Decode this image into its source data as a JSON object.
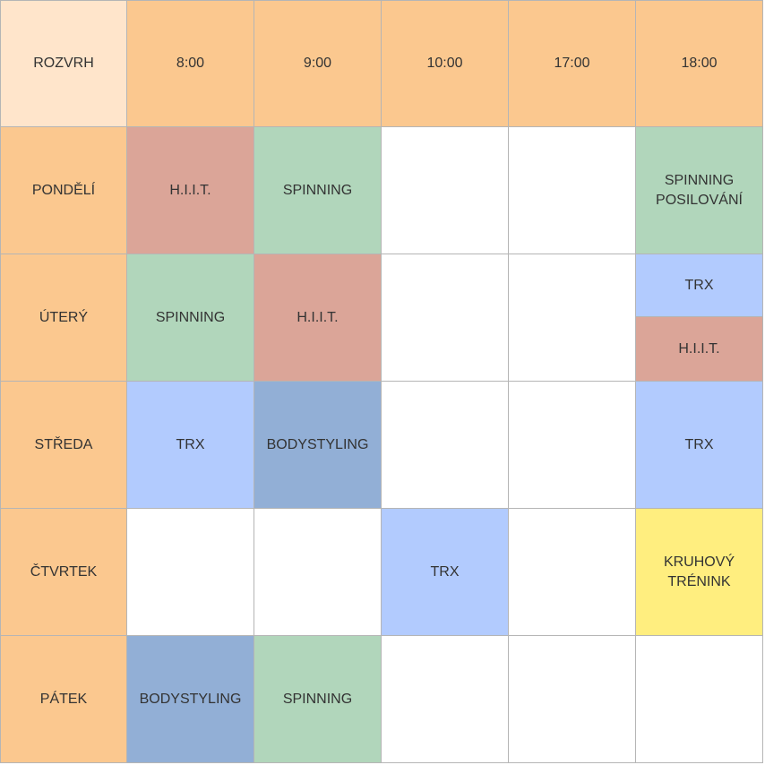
{
  "colors": {
    "corner": "#ffe5cb",
    "header": "#fbc88f",
    "empty": "#ffffff",
    "hiit": "#dba598",
    "spinning": "#b1d6bb",
    "trx": "#b2cbfe",
    "bodystyling": "#92afd6",
    "kruhovy": "#ffee7f",
    "border": "#b5b5b5"
  },
  "corner_label": "ROZVRH",
  "times": [
    "8:00",
    "9:00",
    "10:00",
    "17:00",
    "18:00"
  ],
  "days": [
    {
      "name": "PONDĚLÍ",
      "slots": [
        {
          "label": "H.I.I.T.",
          "type": "hiit"
        },
        {
          "label": "SPINNING",
          "type": "spinning"
        },
        {
          "label": "",
          "type": "empty"
        },
        {
          "label": "",
          "type": "empty"
        },
        {
          "label": "SPINNING\nPOSILOVÁNÍ",
          "type": "spinning"
        }
      ]
    },
    {
      "name": "ÚTERÝ",
      "slots": [
        {
          "label": "SPINNING",
          "type": "spinning"
        },
        {
          "label": "H.I.I.T.",
          "type": "hiit"
        },
        {
          "label": "",
          "type": "empty"
        },
        {
          "label": "",
          "type": "empty"
        },
        {
          "split": [
            {
              "label": "TRX",
              "type": "trx"
            },
            {
              "label": "H.I.I.T.",
              "type": "hiit"
            }
          ]
        }
      ]
    },
    {
      "name": "STŘEDA",
      "slots": [
        {
          "label": "TRX",
          "type": "trx"
        },
        {
          "label": "BODYSTYLING",
          "type": "bodystyling"
        },
        {
          "label": "",
          "type": "empty"
        },
        {
          "label": "",
          "type": "empty"
        },
        {
          "label": "TRX",
          "type": "trx"
        }
      ]
    },
    {
      "name": "ČTVRTEK",
      "slots": [
        {
          "label": "",
          "type": "empty"
        },
        {
          "label": "",
          "type": "empty"
        },
        {
          "label": "TRX",
          "type": "trx"
        },
        {
          "label": "",
          "type": "empty"
        },
        {
          "label": "KRUHOVÝ\nTRÉNINK",
          "type": "kruhovy"
        }
      ]
    },
    {
      "name": "PÁTEK",
      "slots": [
        {
          "label": "BODYSTYLING",
          "type": "bodystyling"
        },
        {
          "label": "SPINNING",
          "type": "spinning"
        },
        {
          "label": "",
          "type": "empty"
        },
        {
          "label": "",
          "type": "empty"
        },
        {
          "label": "",
          "type": "empty"
        }
      ]
    }
  ]
}
